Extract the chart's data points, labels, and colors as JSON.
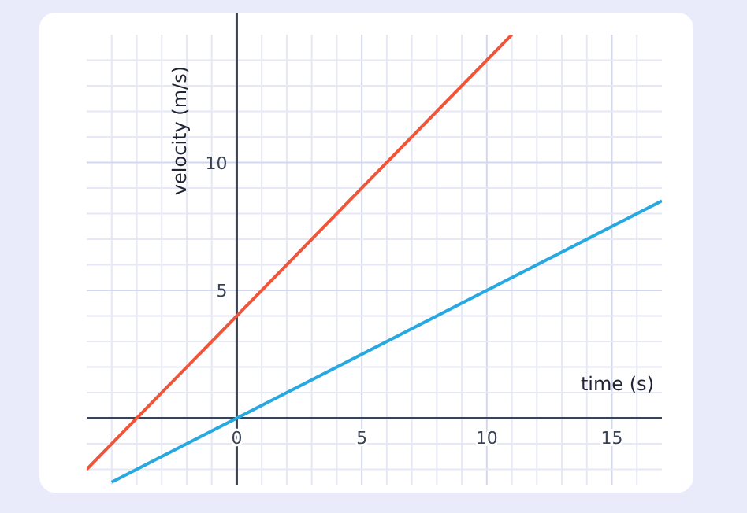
{
  "chart_data": {
    "type": "line",
    "xlabel": "time (s)",
    "ylabel": "velocity (m/s)",
    "xlim": [
      -6,
      17
    ],
    "ylim": [
      -2.6,
      15
    ],
    "xticks": [
      {
        "value": -5,
        "label": null
      },
      {
        "value": -4,
        "label": null
      },
      {
        "value": -3,
        "label": null
      },
      {
        "value": -2,
        "label": null
      },
      {
        "value": -1,
        "label": null
      },
      0,
      {
        "value": 1,
        "label": null
      },
      {
        "value": 2,
        "label": null
      },
      {
        "value": 3,
        "label": null
      },
      {
        "value": 4,
        "label": null
      },
      5,
      {
        "value": 6,
        "label": null
      },
      {
        "value": 7,
        "label": null
      },
      {
        "value": 8,
        "label": null
      },
      {
        "value": 9,
        "label": null
      },
      10,
      {
        "value": 11,
        "label": null
      },
      {
        "value": 12,
        "label": null
      },
      {
        "value": 13,
        "label": null
      },
      {
        "value": 14,
        "label": null
      },
      15,
      {
        "value": 16,
        "label": null
      }
    ],
    "yticks": [
      {
        "value": -2,
        "label": null
      },
      {
        "value": -1,
        "label": null
      },
      {
        "value": 1,
        "label": null
      },
      {
        "value": 2,
        "label": null
      },
      {
        "value": 3,
        "label": null
      },
      {
        "value": 4,
        "label": null
      },
      5,
      {
        "value": 6,
        "label": null
      },
      {
        "value": 7,
        "label": null
      },
      {
        "value": 8,
        "label": null
      },
      {
        "value": 9,
        "label": null
      },
      10,
      {
        "value": 11,
        "label": null
      },
      {
        "value": 12,
        "label": null
      },
      {
        "value": 13,
        "label": null
      },
      {
        "value": 14,
        "label": null
      }
    ],
    "grid": true,
    "marker": "none",
    "line_style": "solid",
    "series": [
      {
        "color": "#f0553a",
        "x": [
          -6,
          11
        ],
        "values": [
          -2,
          15
        ]
      },
      {
        "color": "#27a8e0",
        "x": [
          -5,
          17
        ],
        "values": [
          -2.5,
          8.5
        ]
      }
    ]
  }
}
